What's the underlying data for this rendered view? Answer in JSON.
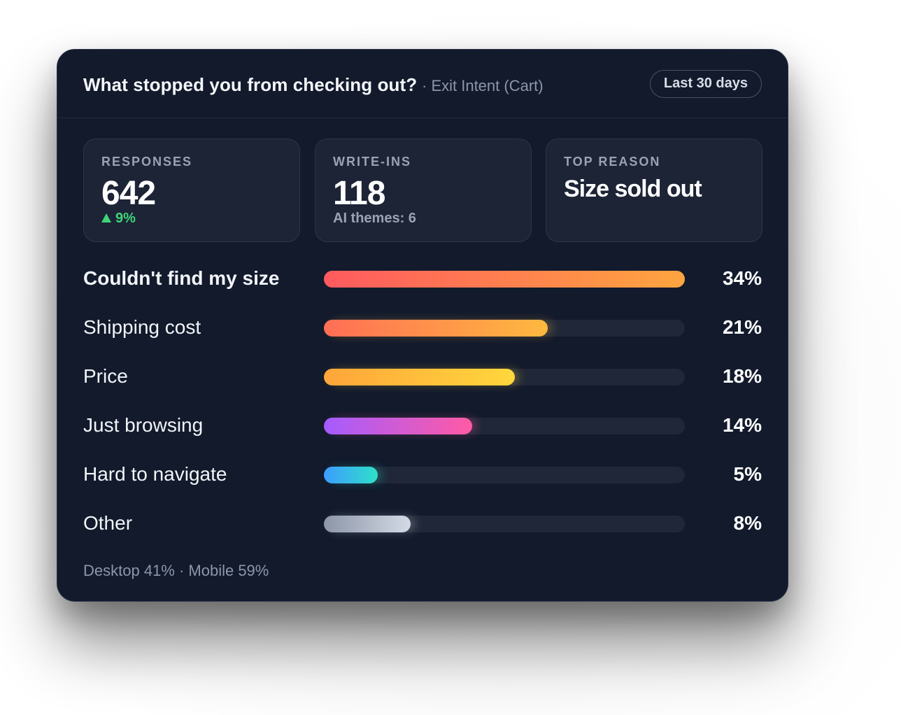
{
  "header": {
    "title": "What stopped you from checking out?",
    "subtitle": "· Exit Intent (Cart)",
    "date_range": "Last 30 days"
  },
  "stats": {
    "responses": {
      "label": "RESPONSES",
      "value": "642",
      "delta": "9%",
      "delta_color": "#3fd477"
    },
    "write_ins": {
      "label": "WRITE-INS",
      "value": "118",
      "sub": "AI themes: 6"
    },
    "top_reason": {
      "label": "TOP REASON",
      "value": "Size sold out"
    }
  },
  "reasons": [
    {
      "label": "Couldn't find my size",
      "pct": "34%",
      "value": 34,
      "bar_fraction": 1.0,
      "bold": true,
      "colors": [
        "#ff5a5f",
        "#ffa53f"
      ]
    },
    {
      "label": "Shipping cost",
      "pct": "21%",
      "value": 21,
      "bar_fraction": 0.62,
      "bold": false,
      "colors": [
        "#ff6e55",
        "#ffb940"
      ]
    },
    {
      "label": "Price",
      "pct": "18%",
      "value": 18,
      "bar_fraction": 0.53,
      "bold": false,
      "colors": [
        "#ffa53a",
        "#ffd73c"
      ]
    },
    {
      "label": "Just browsing",
      "pct": "14%",
      "value": 14,
      "bar_fraction": 0.41,
      "bold": false,
      "colors": [
        "#a45cff",
        "#ff5aa5"
      ]
    },
    {
      "label": "Hard to navigate",
      "pct": "5%",
      "value": 5,
      "bar_fraction": 0.15,
      "bold": false,
      "colors": [
        "#3e9cff",
        "#2ee0c8"
      ]
    },
    {
      "label": "Other",
      "pct": "8%",
      "value": 8,
      "bar_fraction": 0.24,
      "bold": false,
      "colors": [
        "#8c96a8",
        "#d4dae6"
      ]
    }
  ],
  "footer": {
    "text": "Desktop 41% · Mobile 59%"
  }
}
